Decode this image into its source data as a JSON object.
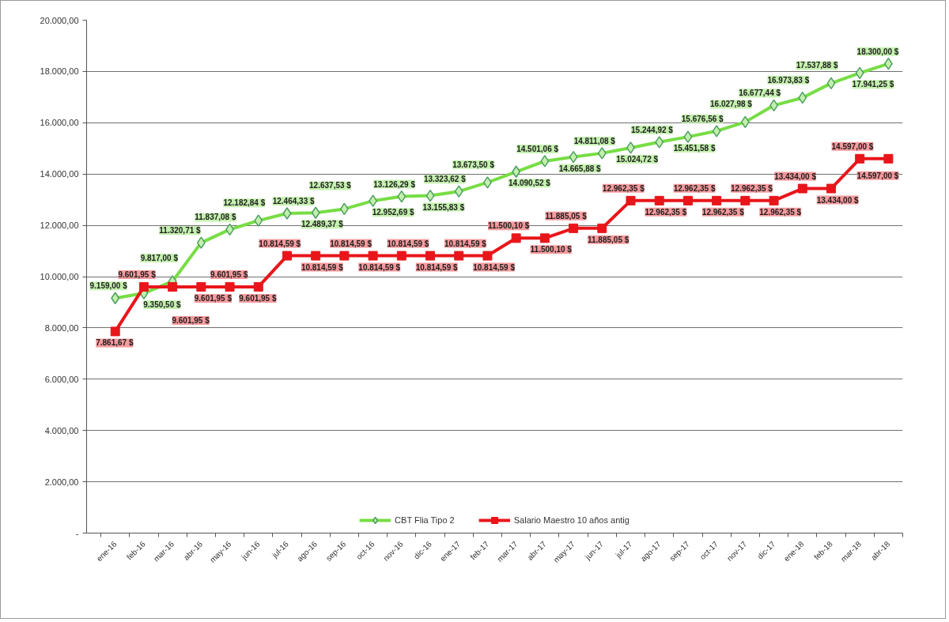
{
  "chart_data": {
    "type": "line",
    "categories": [
      "ene-16",
      "feb-16",
      "mar-16",
      "abr-16",
      "may-16",
      "jun-16",
      "jul-16",
      "ago-16",
      "sep-16",
      "oct-16",
      "nov-16",
      "dic-16",
      "ene-17",
      "feb-17",
      "mar-17",
      "abr-17",
      "may-17",
      "jun-17",
      "jul-17",
      "ago-17",
      "sep-17",
      "oct-17",
      "nov-17",
      "dic-17",
      "ene-18",
      "feb-18",
      "mar-18",
      "abr-18"
    ],
    "series": [
      {
        "name": "CBT Flia Tipo 2",
        "color": "#77dd44",
        "marker": "diamond",
        "values": [
          9159.0,
          9350.5,
          9817.0,
          11320.71,
          11837.08,
          12182.84,
          12464.33,
          12489.37,
          12637.53,
          12952.69,
          13126.29,
          13155.83,
          13323.62,
          13673.5,
          14090.52,
          14501.06,
          14665.88,
          14811.08,
          15024.72,
          15244.92,
          15451.58,
          15676.56,
          16027.98,
          16677.44,
          16973.83,
          17537.88,
          17941.25,
          18300.0
        ],
        "value_labels": [
          "9.159,00 $",
          "9.350,50 $",
          "9.817,00 $",
          "11.320,71 $",
          "11.837,08 $",
          "12.182,84 $",
          "12.464,33 $",
          "12.489,37 $",
          "12.637,53 $",
          "12.952,69 $",
          "13.126,29 $",
          "13.155,83 $",
          "13.323,62 $",
          "13.673,50 $",
          "14.090,52 $",
          "14.501,06 $",
          "14.665,88 $",
          "14.811,08 $",
          "15.024,72 $",
          "15.244,92 $",
          "15.451,58 $",
          "15.676,56 $",
          "16.027,98 $",
          "16.677,44 $",
          "16.973,83 $",
          "17.537,88 $",
          "17.941,25 $",
          "18.300,00 $"
        ]
      },
      {
        "name": "Salario Maestro 10 años antig",
        "color": "#e8161b",
        "marker": "square",
        "values": [
          7861.67,
          9601.95,
          9601.95,
          9601.95,
          9601.95,
          9601.95,
          10814.59,
          10814.59,
          10814.59,
          10814.59,
          10814.59,
          10814.59,
          10814.59,
          10814.59,
          11500.1,
          11500.1,
          11885.05,
          11885.05,
          12962.35,
          12962.35,
          12962.35,
          12962.35,
          12962.35,
          12962.35,
          13434.0,
          13434.0,
          14597.0,
          14597.0
        ],
        "value_labels": [
          "7.861,67 $",
          "9.601,95 $",
          "9.601,95 $",
          "9.601,95 $",
          "9.601,95 $",
          "9.601,95 $",
          "10.814,59 $",
          "10.814,59 $",
          "10.814,59 $",
          "10.814,59 $",
          "10.814,59 $",
          "10.814,59 $",
          "10.814,59 $",
          "10.814,59 $",
          "11.500,10 $",
          "11.500,10 $",
          "11.885,05 $",
          "11.885,05 $",
          "12.962,35 $",
          "12.962,35 $",
          "12.962,35 $",
          "12.962,35 $",
          "12.962,35 $",
          "12.962,35 $",
          "13.434,00 $",
          "13.434,00 $",
          "14.597,00 $",
          "14.597,00 $"
        ]
      }
    ],
    "ylim": [
      0,
      20000
    ],
    "yticks": [
      {
        "value": 0,
        "label": "-"
      },
      {
        "value": 2000,
        "label": "2.000,00"
      },
      {
        "value": 4000,
        "label": "4.000,00"
      },
      {
        "value": 6000,
        "label": "6.000,00"
      },
      {
        "value": 8000,
        "label": "8.000,00"
      },
      {
        "value": 10000,
        "label": "10.000,00"
      },
      {
        "value": 12000,
        "label": "12.000,00"
      },
      {
        "value": 14000,
        "label": "14.000,00"
      },
      {
        "value": 16000,
        "label": "16.000,00"
      },
      {
        "value": 18000,
        "label": "18.000,00"
      },
      {
        "value": 20000,
        "label": "20.000,00"
      }
    ],
    "grid": "y",
    "legend": "bottom"
  }
}
